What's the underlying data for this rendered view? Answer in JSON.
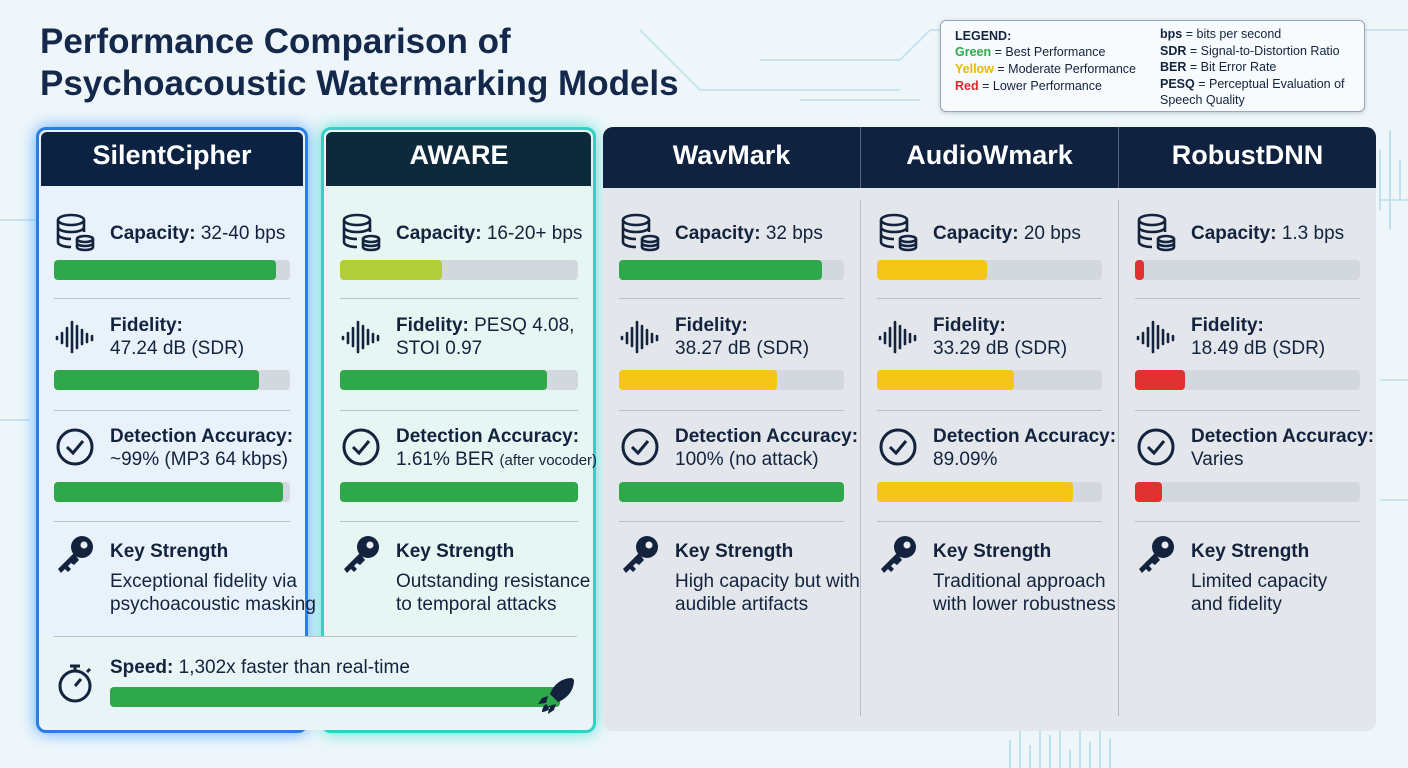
{
  "header": {
    "title_lines": [
      "Performance Comparison of",
      "Psychoacoustic Watermarking Models"
    ]
  },
  "legend": {
    "heading": "LEGEND:",
    "items": [
      {
        "label": "Green",
        "text": "= Best Performance",
        "color": "#2ea84a"
      },
      {
        "label": "Yellow",
        "text": "= Moderate Performance",
        "color": "#e8b900"
      },
      {
        "label": "Red",
        "text": "= Lower Performance",
        "color": "#d92b2b"
      }
    ],
    "abbreviations": [
      {
        "abbr": "bps",
        "text": "= bits per second"
      },
      {
        "abbr": "SDR",
        "text": "= Signal-to-Distortion Ratio"
      },
      {
        "abbr": "BER",
        "text": "= Bit Error Rate"
      },
      {
        "abbr": "PESQ",
        "text": "= Perceptual Evaluation of Speech Quality"
      }
    ]
  },
  "models": [
    {
      "name": "SilentCipher",
      "metrics": [
        {
          "label": "Capacity:",
          "inline": "32-40 bps",
          "bar": 94,
          "color": "#2ea84a"
        },
        {
          "label": "Fidelity:",
          "below": "47.24 dB (SDR)",
          "bar": 87,
          "color": "#2ea84a"
        },
        {
          "label": "Detection Accuracy:",
          "below": "~99% (MP3 64 kbps)",
          "bar": 97,
          "color": "#2ea84a"
        }
      ],
      "strength": {
        "label": "Key Strength",
        "lines": [
          "Exceptional fidelity via",
          "psychoacoustic masking"
        ]
      }
    },
    {
      "name": "AWARE",
      "metrics": [
        {
          "label": "Capacity:",
          "inline": "16-20+ bps",
          "bar": 43,
          "color": "#b3cc3a"
        },
        {
          "label": "Fidelity:",
          "inline": "PESQ 4.08,",
          "below": "STOI 0.97",
          "bar": 87,
          "color": "#2ea84a"
        },
        {
          "label": "Detection Accuracy:",
          "below": "1.61% BER",
          "note": "(after vocoder)",
          "bar": 100,
          "color": "#2ea84a"
        }
      ],
      "strength": {
        "label": "Key Strength",
        "lines": [
          "Outstanding resistance",
          "to temporal attacks"
        ]
      }
    },
    {
      "name": "WavMark",
      "metrics": [
        {
          "label": "Capacity:",
          "inline": "32 bps",
          "bar": 90,
          "color": "#2ea84a"
        },
        {
          "label": "Fidelity:",
          "below": "38.27 dB (SDR)",
          "bar": 70,
          "color": "#f5c518"
        },
        {
          "label": "Detection Accuracy:",
          "below": "100% (no attack)",
          "bar": 100,
          "color": "#2ea84a"
        }
      ],
      "strength": {
        "label": "Key Strength",
        "lines": [
          "High capacity but with",
          "audible artifacts"
        ]
      }
    },
    {
      "name": "AudioWmark",
      "metrics": [
        {
          "label": "Capacity:",
          "inline": "20 bps",
          "bar": 49,
          "color": "#f5c518"
        },
        {
          "label": "Fidelity:",
          "below": "33.29 dB (SDR)",
          "bar": 61,
          "color": "#f5c518"
        },
        {
          "label": "Detection Accuracy:",
          "below": "89.09%",
          "bar": 87,
          "color": "#f5c518"
        }
      ],
      "strength": {
        "label": "Key Strength",
        "lines": [
          "Traditional approach",
          "with lower robustness"
        ]
      }
    },
    {
      "name": "RobustDNN",
      "metrics": [
        {
          "label": "Capacity:",
          "inline": "1.3 bps",
          "bar": 4,
          "color": "#e03030"
        },
        {
          "label": "Fidelity:",
          "below": "18.49 dB (SDR)",
          "bar": 22,
          "color": "#e03030"
        },
        {
          "label": "Detection Accuracy:",
          "below": "Varies",
          "bar": 12,
          "color": "#e03030"
        }
      ],
      "strength": {
        "label": "Key Strength",
        "lines": [
          "Limited capacity",
          "and fidelity"
        ]
      }
    }
  ],
  "speed": {
    "label": "Speed:",
    "inline": "1,302x faster than real-time",
    "bar": 100,
    "color": "#2ea84a"
  }
}
